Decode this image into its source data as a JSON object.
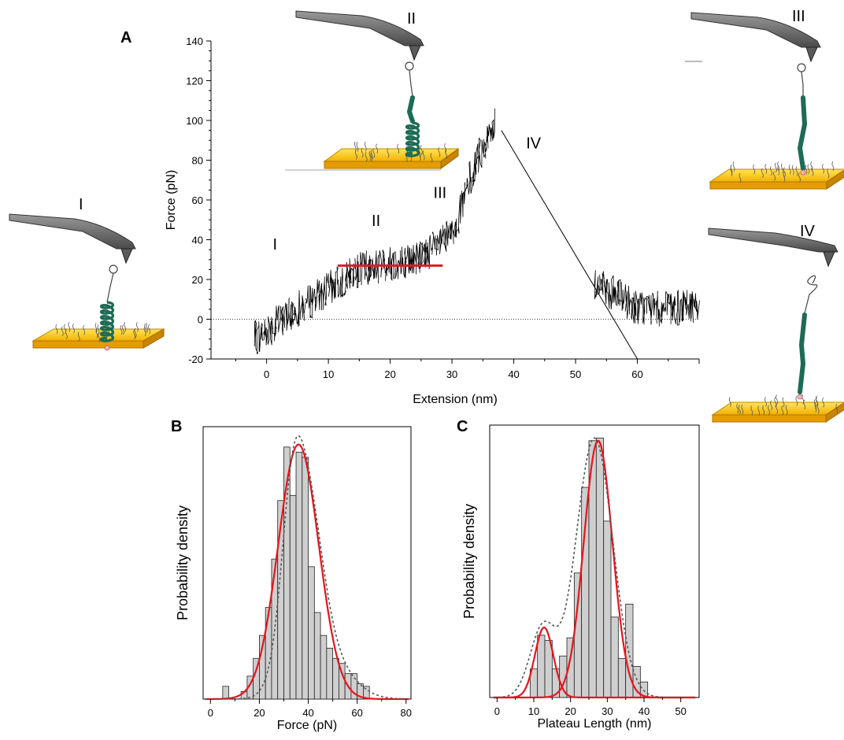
{
  "panels": {
    "A": {
      "letter": "A",
      "chart_data": {
        "type": "line",
        "xlabel": "Extension (nm)",
        "ylabel": "Force (pN)",
        "xlim": [
          -9,
          70
        ],
        "ylim": [
          -20,
          140
        ],
        "x_ticks": [
          0,
          10,
          20,
          30,
          40,
          50,
          60
        ],
        "y_ticks": [
          -20,
          0,
          20,
          40,
          60,
          80,
          100,
          120,
          140
        ],
        "baseline_y": 0,
        "trace": {
          "rise": [
            [
              -2,
              -10
            ],
            [
              5,
              5
            ],
            [
              10,
              15
            ],
            [
              15,
              25
            ],
            [
              20,
              28
            ],
            [
              25,
              31
            ],
            [
              30,
              42
            ],
            [
              34,
              80
            ],
            [
              37,
              98
            ]
          ],
          "retract": [
            [
              38,
              95
            ],
            [
              60,
              -20
            ]
          ],
          "tail": [
            [
              53,
              18
            ],
            [
              60,
              6
            ],
            [
              65,
              5
            ],
            [
              70,
              7
            ]
          ],
          "noise_pn": 9
        },
        "plateau_fit": {
          "x": [
            11.5,
            28.5
          ],
          "y": 27,
          "color": "#d62020"
        },
        "region_labels": [
          {
            "text": "I",
            "x": 1,
            "y": 35
          },
          {
            "text": "II",
            "x": 17,
            "y": 47
          },
          {
            "text": "III",
            "x": 27,
            "y": 61
          },
          {
            "text": "IV",
            "x": 42,
            "y": 86
          }
        ]
      }
    },
    "B": {
      "letter": "B",
      "chart_data": {
        "type": "bar",
        "xlabel": "Force (pN)",
        "ylabel": "Probability density",
        "xlim": [
          -3,
          82
        ],
        "x_ticks": [
          0,
          20,
          40,
          60,
          80
        ],
        "bin_width": 2.5,
        "bin_start": 2.5,
        "values": [
          0,
          0.05,
          0,
          0,
          0.03,
          0.09,
          0.16,
          0.25,
          0.36,
          0.55,
          0.78,
          0.99,
          0.8,
          0.97,
          0.95,
          0.52,
          0.34,
          0.25,
          0.2,
          0.16,
          0.14,
          0.1,
          0.1,
          0.06,
          0.05
        ],
        "ymax": 1.07,
        "fits": [
          {
            "kind": "gaussian",
            "mu": 36,
            "sigma": 8.3,
            "amp": 1.0,
            "color": "#e8141c",
            "style": "solid"
          },
          {
            "kind": "gaussian-sum",
            "color": "#555555",
            "style": "dotted",
            "components": [
              [
                38,
                7,
                0.82
              ],
              [
                33,
                4,
                0.28
              ],
              [
                50,
                9,
                0.12
              ]
            ]
          }
        ]
      }
    },
    "C": {
      "letter": "C",
      "chart_data": {
        "type": "bar",
        "xlabel": "Plateau Length (nm)",
        "ylabel": "Probability density",
        "xlim": [
          -2,
          55
        ],
        "x_ticks": [
          0,
          10,
          20,
          30,
          40,
          50
        ],
        "bin_width": 2,
        "bin_start": 9,
        "values": [
          0.11,
          0.24,
          0.22,
          0.11,
          0.16,
          0.23,
          0.48,
          0.81,
          0.99,
          1.0,
          0.68,
          0.31,
          0.15,
          0.36,
          0.12,
          0.06
        ],
        "ymax": 1.05,
        "fits": [
          {
            "kind": "gaussian",
            "mu": 12.8,
            "sigma": 2.5,
            "amp": 0.27,
            "color": "#e8141c",
            "style": "solid"
          },
          {
            "kind": "gaussian",
            "mu": 27.5,
            "sigma": 3.9,
            "amp": 0.99,
            "color": "#e8141c",
            "style": "solid"
          },
          {
            "kind": "gaussian-sum",
            "color": "#555555",
            "style": "dotted",
            "components": [
              [
                12.5,
                3.5,
                0.27
              ],
              [
                26.5,
                5.0,
                1.0
              ]
            ]
          }
        ]
      }
    }
  },
  "cartoons": [
    {
      "id": "I",
      "label": "I",
      "state": "coiled"
    },
    {
      "id": "II",
      "label": "II",
      "state": "coiled-partial"
    },
    {
      "id": "III",
      "label": "III",
      "state": "extended"
    },
    {
      "id": "IV",
      "label": "IV",
      "state": "detached"
    }
  ]
}
